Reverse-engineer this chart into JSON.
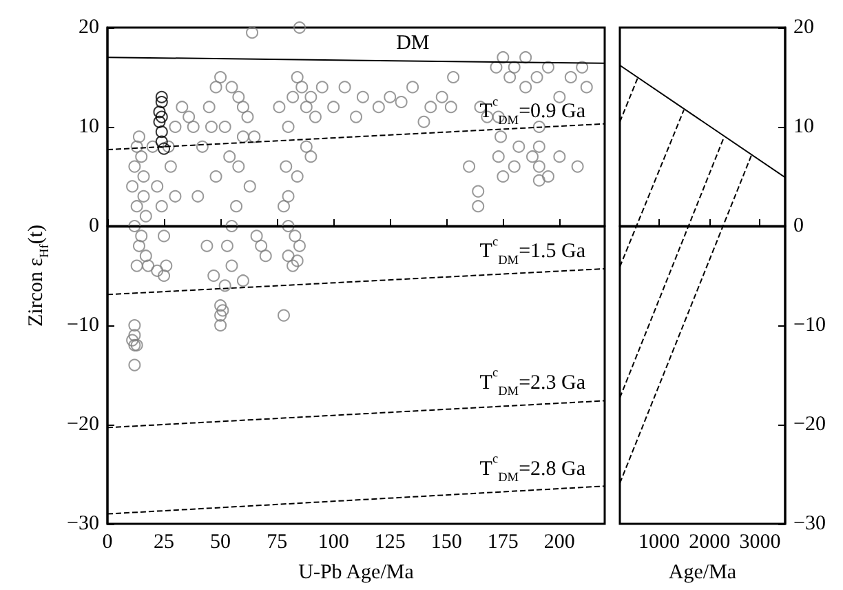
{
  "chart_data": [
    {
      "type": "scatter",
      "xlabel": "U-Pb Age/Ma",
      "ylabel": "Zircon ε$_{Hf}$(t)",
      "xlim": [
        0,
        220
      ],
      "ylim": [
        -30,
        20
      ],
      "xticks": [
        0,
        25,
        50,
        75,
        100,
        125,
        150,
        175,
        200
      ],
      "yticks": [
        -30,
        -20,
        -10,
        0,
        10,
        20
      ],
      "ref_lines": [
        {
          "axis": "y",
          "value": 0,
          "color": "#000000",
          "line_style": "solid"
        }
      ],
      "annotations": [
        "DM",
        "T$^{c}$$_{DM}$=0.9 Ga",
        "T$^{c}$$_{DM}$=1.5 Ga",
        "T$^{c}$$_{DM}$=2.3 Ga",
        "T$^{c}$$_{DM}$=2.8 Ga"
      ],
      "series": [
        {
          "color": "#808080",
          "marker": "circle",
          "x": [
            12,
            12,
            12,
            12,
            13,
            11,
            13,
            14,
            12,
            13,
            11,
            12,
            13,
            14,
            15,
            16,
            16,
            17,
            18,
            17,
            15,
            22,
            25,
            26,
            24,
            22,
            28,
            27,
            30,
            20,
            30,
            25,
            40,
            42,
            45,
            48,
            50,
            55,
            58,
            60,
            44,
            47,
            50,
            50,
            50,
            51,
            52,
            55,
            53,
            57,
            58,
            60,
            62,
            65,
            63,
            66,
            68,
            70,
            55,
            48,
            46,
            52,
            54,
            38,
            36,
            33,
            60,
            64,
            78,
            80,
            80,
            80,
            82,
            84,
            78,
            79,
            80,
            82,
            84,
            86,
            88,
            90,
            92,
            95,
            85,
            76,
            88,
            90,
            84,
            85,
            83,
            100,
            105,
            110,
            113,
            120,
            125,
            130,
            135,
            140,
            143,
            148,
            152,
            153,
            172,
            175,
            178,
            180,
            185,
            190,
            195,
            200,
            205,
            210,
            185,
            173,
            174,
            173,
            175,
            180,
            182,
            188,
            191,
            191,
            191,
            191,
            195,
            200,
            164,
            164,
            160,
            168,
            165,
            208,
            212
          ],
          "values": [
            -14,
            -12,
            -11,
            -10,
            -12,
            -11.5,
            -4,
            -2,
            0,
            2,
            4,
            6,
            8,
            9,
            7,
            5,
            3,
            -3,
            -4,
            1,
            -1,
            -4.5,
            -5,
            -4,
            2,
            4,
            6,
            8,
            10,
            8,
            3,
            -1,
            3,
            8,
            12,
            14,
            15,
            14,
            13,
            12,
            -2,
            -5,
            -8,
            -9,
            -10,
            -8.5,
            -6,
            -4,
            -2,
            2,
            6,
            9,
            11,
            9,
            4,
            -1,
            -2,
            -3,
            0,
            5,
            10,
            10,
            7,
            10,
            11,
            12,
            -5.5,
            19.5,
            -9,
            -3,
            0,
            3,
            -4,
            -3.5,
            2,
            6,
            10,
            13,
            15,
            14,
            12,
            13,
            11,
            14,
            20,
            12,
            8,
            7,
            5,
            -2,
            -1,
            12,
            14,
            11,
            13,
            12,
            13,
            12.5,
            14,
            10.5,
            12,
            13,
            12,
            15,
            16,
            17,
            15,
            16,
            14,
            15,
            16,
            13,
            15,
            16,
            17,
            11,
            9,
            7,
            5,
            6,
            8,
            7,
            10,
            8,
            6,
            4.6,
            5,
            7,
            3.5,
            2,
            6,
            11,
            12,
            6,
            14
          ]
        },
        {
          "color": "#000000",
          "marker": "circle",
          "x": [
            24,
            24,
            23,
            24,
            23,
            24,
            24,
            25
          ],
          "values": [
            13,
            12.5,
            11.5,
            11,
            10.5,
            9.5,
            8.5,
            7.8
          ]
        },
        {
          "type": "line",
          "color": "#000000",
          "line_style": "solid",
          "x": [
            0,
            220
          ],
          "values": [
            17.0,
            16.4
          ]
        },
        {
          "type": "line",
          "color": "#000000",
          "line_style": "dashed",
          "x": [
            0,
            220
          ],
          "values": [
            7.7,
            10.3
          ]
        },
        {
          "type": "line",
          "color": "#000000",
          "line_style": "dashed",
          "x": [
            0,
            220
          ],
          "values": [
            -6.9,
            -4.3
          ]
        },
        {
          "type": "line",
          "color": "#000000",
          "line_style": "dashed",
          "x": [
            0,
            220
          ],
          "values": [
            -20.3,
            -17.6
          ]
        },
        {
          "type": "line",
          "color": "#000000",
          "line_style": "dashed",
          "x": [
            0,
            220
          ],
          "values": [
            -29.0,
            -26.2
          ]
        }
      ]
    },
    {
      "type": "line",
      "xlabel": "Age/Ma",
      "xlim": [
        220,
        3500
      ],
      "ylim": [
        -30,
        20
      ],
      "xticks": [
        1000,
        2000,
        3000
      ],
      "yticks": [
        -30,
        -20,
        -10,
        0,
        10,
        20
      ],
      "ref_lines": [
        {
          "axis": "y",
          "value": 0,
          "color": "#000000",
          "line_style": "solid"
        }
      ],
      "series": [
        {
          "color": "#000000",
          "line_style": "solid",
          "x": [
            220,
            3500
          ],
          "values": [
            16.2,
            4.9
          ]
        },
        {
          "color": "#000000",
          "line_style": "dashed",
          "x": [
            220,
            580
          ],
          "values": [
            10.5,
            15.0
          ]
        },
        {
          "color": "#000000",
          "line_style": "dashed",
          "x": [
            220,
            1490
          ],
          "values": [
            -4.1,
            11.7
          ]
        },
        {
          "color": "#000000",
          "line_style": "dashed",
          "x": [
            220,
            2290
          ],
          "values": [
            -17.3,
            9.0
          ]
        },
        {
          "color": "#000000",
          "line_style": "dashed",
          "x": [
            220,
            2836
          ],
          "values": [
            -25.9,
            7.2
          ]
        }
      ]
    }
  ]
}
